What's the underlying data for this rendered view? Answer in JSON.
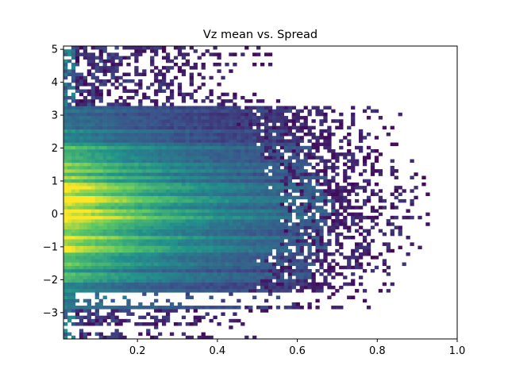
{
  "chart_data": {
    "type": "heatmap",
    "title": "Vz mean vs. Spread",
    "xlabel": "",
    "ylabel": "",
    "xlim": [
      0.015,
      1.0
    ],
    "ylim": [
      -3.8,
      5.1
    ],
    "x_ticks": [
      0.2,
      0.4,
      0.6,
      0.8,
      1.0
    ],
    "x_tick_labels": [
      "0.2",
      "0.4",
      "0.6",
      "0.8",
      "1.0"
    ],
    "y_ticks": [
      -3,
      -2,
      -1,
      0,
      1,
      2,
      3,
      4,
      5
    ],
    "y_tick_labels": [
      "−3",
      "−2",
      "−1",
      "0",
      "1",
      "2",
      "3",
      "4",
      "5"
    ],
    "colormap": "viridis",
    "colormap_stops": [
      "#440154",
      "#3b528b",
      "#21918c",
      "#5ec962",
      "#fde725"
    ],
    "grid": false,
    "legend": "none",
    "bins": {
      "x": 100,
      "y": 88
    },
    "density_profile": {
      "peak": {
        "x": 0.02,
        "y": 0.1
      },
      "dense_band_y": [
        -2.9,
        3.3
      ],
      "sparse_band_y_upper": [
        3.3,
        5.1
      ],
      "sparse_band_y_lower": [
        -3.8,
        -2.4
      ],
      "gap_y_rows": [
        -2.5,
        -2.65,
        -3.5
      ],
      "max_x_extent": 0.93
    }
  }
}
